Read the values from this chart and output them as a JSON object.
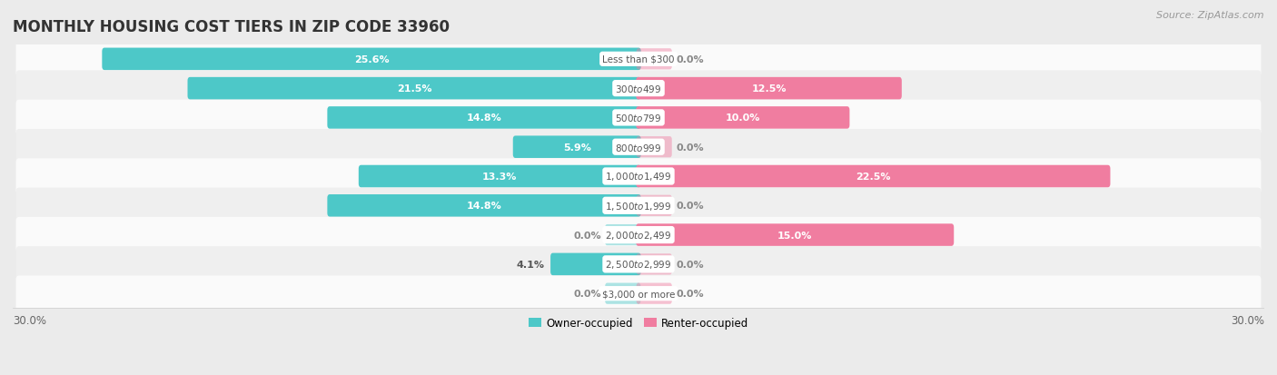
{
  "title": "MONTHLY HOUSING COST TIERS IN ZIP CODE 33960",
  "source": "Source: ZipAtlas.com",
  "categories": [
    "Less than $300",
    "$300 to $499",
    "$500 to $799",
    "$800 to $999",
    "$1,000 to $1,499",
    "$1,500 to $1,999",
    "$2,000 to $2,499",
    "$2,500 to $2,999",
    "$3,000 or more"
  ],
  "owner_values": [
    25.6,
    21.5,
    14.8,
    5.9,
    13.3,
    14.8,
    0.0,
    4.1,
    0.0
  ],
  "renter_values": [
    0.0,
    12.5,
    10.0,
    0.0,
    22.5,
    0.0,
    15.0,
    0.0,
    0.0
  ],
  "owner_color": "#4DC8C8",
  "renter_color": "#F07DA0",
  "owner_label": "Owner-occupied",
  "renter_label": "Renter-occupied",
  "xlim": 30.0,
  "bar_height": 0.52,
  "bg_color": "#EBEBEB",
  "row_bg_even": "#FAFAFA",
  "row_bg_odd": "#EFEFEF",
  "title_fontsize": 12,
  "value_fontsize": 8,
  "category_fontsize": 7.5,
  "axis_label_fontsize": 8.5,
  "source_fontsize": 8,
  "legend_fontsize": 8.5
}
